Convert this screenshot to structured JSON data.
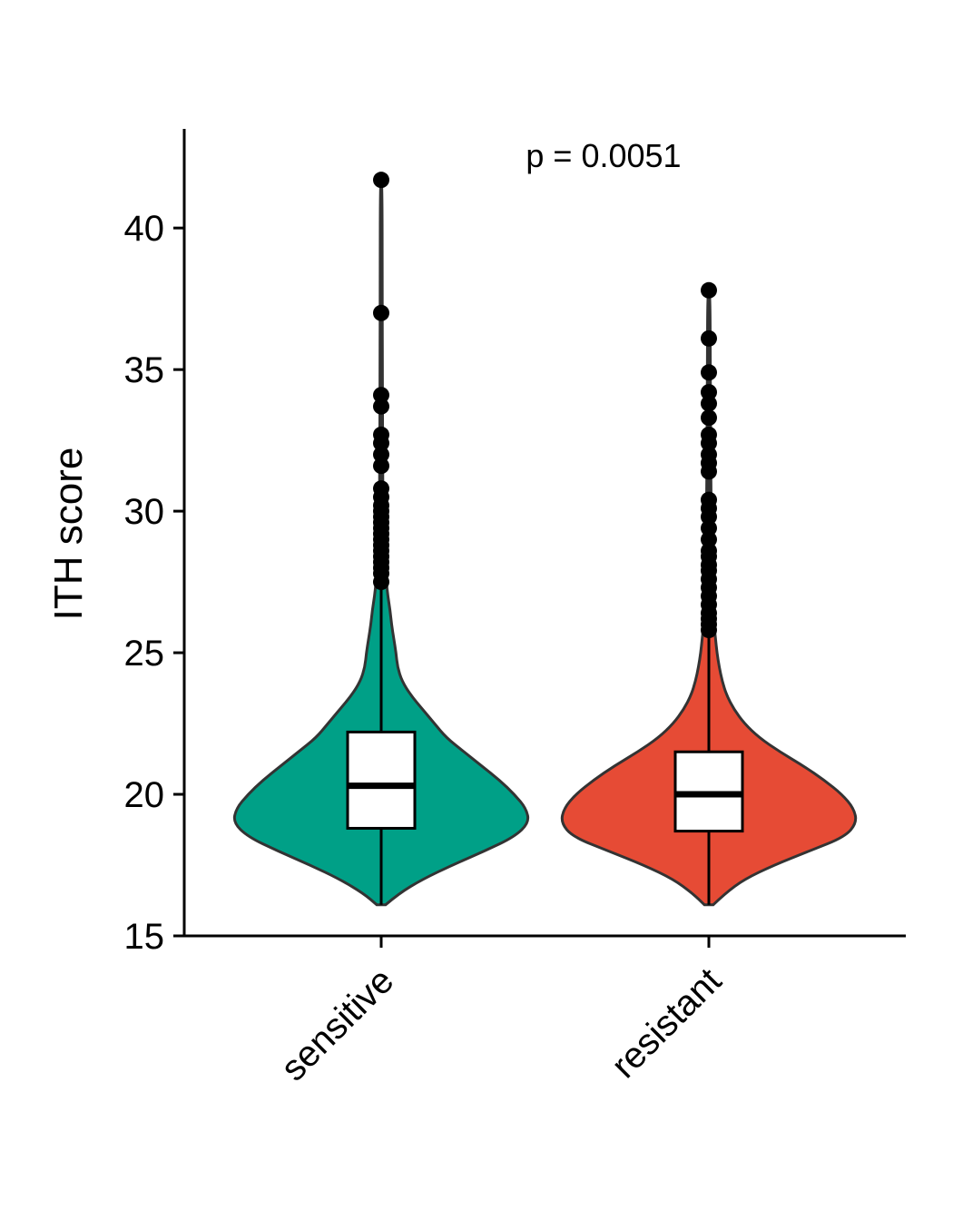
{
  "chart_data": {
    "type": "violin",
    "ylabel": "ITH score",
    "xlabel": "",
    "ylim": [
      15,
      43.5
    ],
    "yticks": [
      15,
      20,
      25,
      30,
      35,
      40
    ],
    "annotation": "p = 0.0051",
    "grid": false,
    "legend": "none",
    "categories": [
      "sensitive",
      "resistant"
    ],
    "series": [
      {
        "category": "sensitive",
        "color": "#00A087",
        "min": 16.1,
        "q1": 18.8,
        "median": 20.3,
        "q3": 22.2,
        "whisker_high": 27.5,
        "outliers": [
          27.5,
          27.8,
          28.0,
          28.2,
          28.4,
          28.6,
          28.8,
          29.0,
          29.2,
          29.4,
          29.6,
          29.8,
          30.0,
          30.2,
          30.5,
          30.8,
          31.6,
          32.0,
          32.4,
          32.7,
          33.7,
          34.1,
          37.0,
          41.7
        ],
        "density": [
          [
            16.1,
            0.03
          ],
          [
            16.5,
            0.12
          ],
          [
            17.0,
            0.28
          ],
          [
            17.5,
            0.48
          ],
          [
            18.0,
            0.7
          ],
          [
            18.5,
            0.9
          ],
          [
            19.0,
            1.0
          ],
          [
            19.5,
            0.98
          ],
          [
            20.0,
            0.9
          ],
          [
            20.5,
            0.8
          ],
          [
            21.0,
            0.68
          ],
          [
            21.5,
            0.56
          ],
          [
            22.0,
            0.44
          ],
          [
            22.5,
            0.36
          ],
          [
            23.0,
            0.28
          ],
          [
            23.5,
            0.2
          ],
          [
            24.0,
            0.14
          ],
          [
            24.5,
            0.11
          ],
          [
            25.0,
            0.1
          ],
          [
            25.5,
            0.085
          ],
          [
            26.0,
            0.07
          ],
          [
            26.5,
            0.06
          ],
          [
            27.0,
            0.045
          ],
          [
            27.5,
            0.035
          ],
          [
            28.0,
            0.025
          ],
          [
            29.0,
            0.015
          ],
          [
            30.0,
            0.012
          ],
          [
            32.0,
            0.01
          ],
          [
            35.0,
            0.008
          ],
          [
            38.0,
            0.007
          ],
          [
            41.7,
            0.006
          ]
        ]
      },
      {
        "category": "resistant",
        "color": "#E64B35",
        "min": 16.1,
        "q1": 18.7,
        "median": 20.0,
        "q3": 21.5,
        "whisker_high": 25.8,
        "outliers": [
          25.8,
          26.0,
          26.2,
          26.4,
          26.7,
          27.0,
          27.3,
          27.6,
          27.9,
          28.1,
          28.4,
          28.6,
          29.0,
          29.4,
          29.8,
          30.1,
          30.4,
          31.4,
          31.7,
          32.0,
          32.4,
          32.7,
          33.3,
          33.8,
          34.2,
          34.9,
          36.1,
          37.8
        ],
        "density": [
          [
            16.1,
            0.03
          ],
          [
            16.5,
            0.11
          ],
          [
            17.0,
            0.24
          ],
          [
            17.5,
            0.44
          ],
          [
            18.0,
            0.68
          ],
          [
            18.5,
            0.92
          ],
          [
            19.0,
            1.0
          ],
          [
            19.5,
            0.98
          ],
          [
            20.0,
            0.9
          ],
          [
            20.5,
            0.78
          ],
          [
            21.0,
            0.64
          ],
          [
            21.5,
            0.48
          ],
          [
            22.0,
            0.34
          ],
          [
            22.5,
            0.24
          ],
          [
            23.0,
            0.17
          ],
          [
            23.5,
            0.12
          ],
          [
            24.0,
            0.09
          ],
          [
            24.5,
            0.07
          ],
          [
            25.0,
            0.055
          ],
          [
            25.5,
            0.045
          ],
          [
            26.0,
            0.035
          ],
          [
            27.0,
            0.025
          ],
          [
            28.0,
            0.02
          ],
          [
            30.0,
            0.015
          ],
          [
            33.0,
            0.012
          ],
          [
            35.0,
            0.01
          ],
          [
            37.8,
            0.008
          ]
        ]
      }
    ]
  }
}
